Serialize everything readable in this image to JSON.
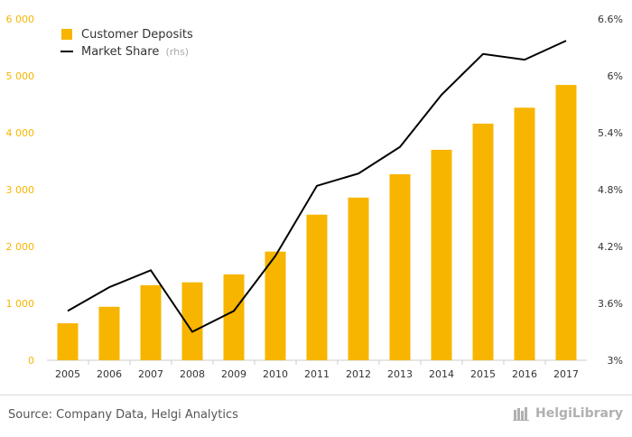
{
  "chart_data": {
    "type": "bar",
    "categories": [
      "2005",
      "2006",
      "2007",
      "2008",
      "2009",
      "2010",
      "2011",
      "2012",
      "2013",
      "2014",
      "2015",
      "2016",
      "2017"
    ],
    "series": [
      {
        "name": "Customer Deposits",
        "type": "bar",
        "axis": "left",
        "color": "#f7b500",
        "values": [
          650,
          940,
          1320,
          1370,
          1510,
          1910,
          2560,
          2860,
          3270,
          3700,
          4160,
          4440,
          4840
        ]
      },
      {
        "name": "Market Share",
        "suffix": "(rhs)",
        "type": "line",
        "axis": "right",
        "color": "#000000",
        "values": [
          3.52,
          3.77,
          3.95,
          3.3,
          3.52,
          4.1,
          4.84,
          4.97,
          5.25,
          5.8,
          6.23,
          6.17,
          6.37
        ]
      }
    ],
    "y_left": {
      "min": 0,
      "max": 6000,
      "ticks": [
        "0",
        "1 000",
        "2 000",
        "3 000",
        "4 000",
        "5 000",
        "6 000"
      ],
      "tick_color": "#f7b500"
    },
    "y_right": {
      "min": 3,
      "max": 6.6,
      "ticks": [
        "3%",
        "3.6%",
        "4.2%",
        "4.8%",
        "5.4%",
        "6%",
        "6.6%"
      ]
    },
    "grid": false,
    "legend_position": "top-left"
  },
  "footer": {
    "source": "Source: Company Data, Helgi Analytics",
    "brand": "HelgiLibrary"
  }
}
